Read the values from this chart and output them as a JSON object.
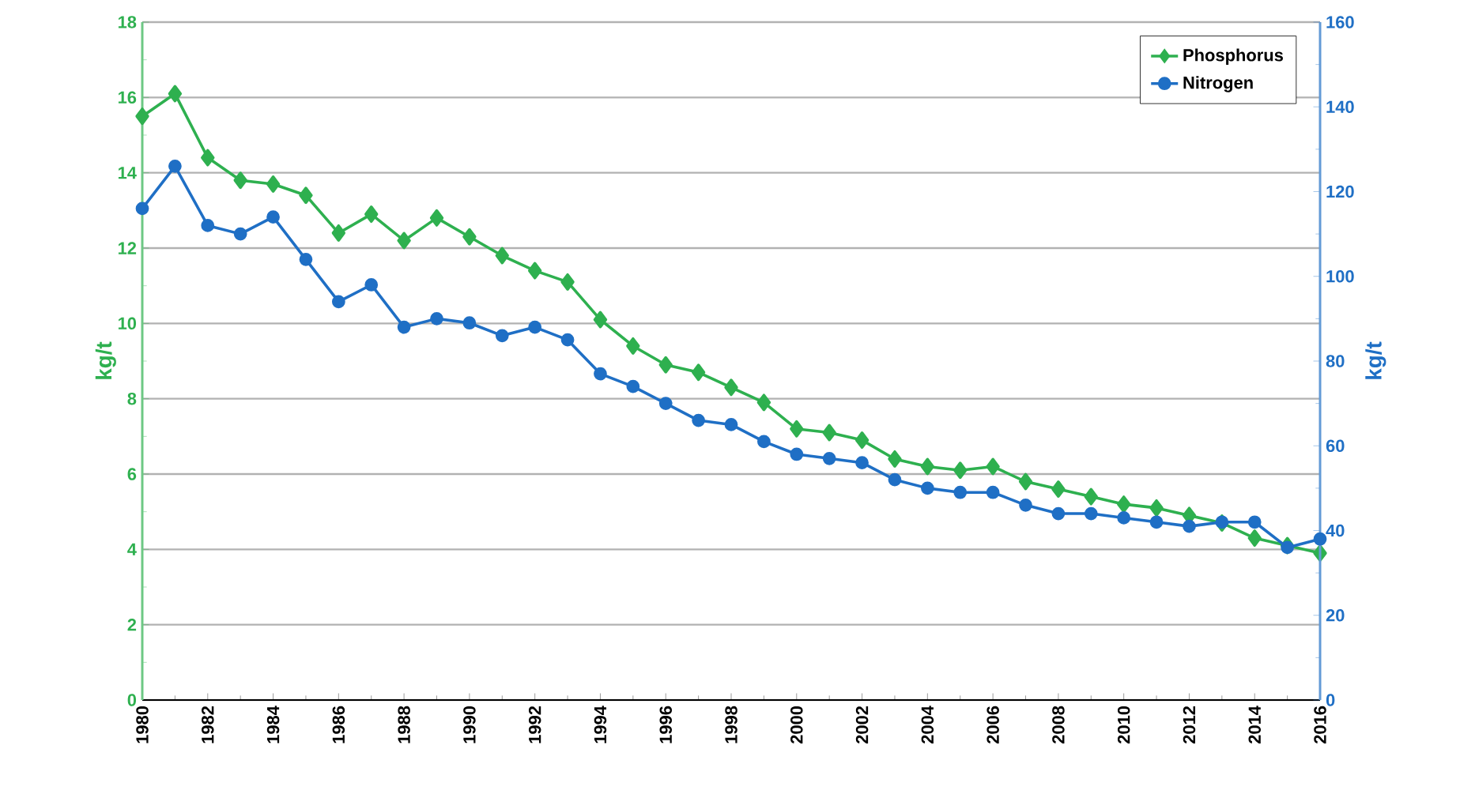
{
  "chart_data": {
    "type": "line",
    "x": [
      1980,
      1981,
      1982,
      1983,
      1984,
      1985,
      1986,
      1987,
      1988,
      1989,
      1990,
      1991,
      1992,
      1993,
      1994,
      1995,
      1996,
      1997,
      1998,
      1999,
      2000,
      2001,
      2002,
      2003,
      2004,
      2005,
      2006,
      2007,
      2008,
      2009,
      2010,
      2011,
      2012,
      2013,
      2014,
      2015,
      2016
    ],
    "xlim": [
      1980,
      2016
    ],
    "xticks": [
      1980,
      1982,
      1984,
      1986,
      1988,
      1990,
      1992,
      1994,
      1996,
      1998,
      2000,
      2002,
      2004,
      2006,
      2008,
      2010,
      2012,
      2014,
      2016
    ],
    "ylim": [
      0,
      18
    ],
    "yticks": [
      0,
      2,
      4,
      6,
      8,
      10,
      12,
      14,
      16,
      18
    ],
    "y2lim": [
      0,
      160
    ],
    "y2ticks": [
      0,
      20,
      40,
      60,
      80,
      100,
      120,
      140,
      160
    ],
    "ylabel": "kg/t",
    "y2label": "kg/t",
    "grid": "y",
    "legend": "top right",
    "line_style": "solid",
    "series": [
      {
        "name": "Phosphorus",
        "color": "#2eb04f",
        "marker": "diamond",
        "values": [
          15.5,
          16.1,
          14.4,
          13.8,
          13.7,
          13.4,
          12.4,
          12.9,
          12.2,
          12.8,
          12.3,
          11.8,
          11.4,
          11.1,
          10.1,
          9.4,
          8.9,
          8.7,
          8.3,
          7.9,
          7.2,
          7.1,
          6.9,
          6.4,
          6.2,
          6.1,
          6.2,
          5.8,
          5.6,
          5.4,
          5.2,
          5.1,
          4.9,
          4.7,
          4.3,
          4.1,
          3.9
        ]
      },
      {
        "name": "Nitrogen",
        "color": "#1f6fc5",
        "marker": "circle",
        "axis": "y2",
        "values": [
          116,
          126,
          112,
          110,
          114,
          104,
          94,
          98,
          88,
          90,
          89,
          86,
          88,
          85,
          77,
          74,
          70,
          66,
          65,
          61,
          58,
          57,
          56,
          52,
          50,
          49,
          49,
          46,
          44,
          44,
          43,
          42,
          41,
          42,
          42,
          36,
          38
        ]
      }
    ]
  }
}
